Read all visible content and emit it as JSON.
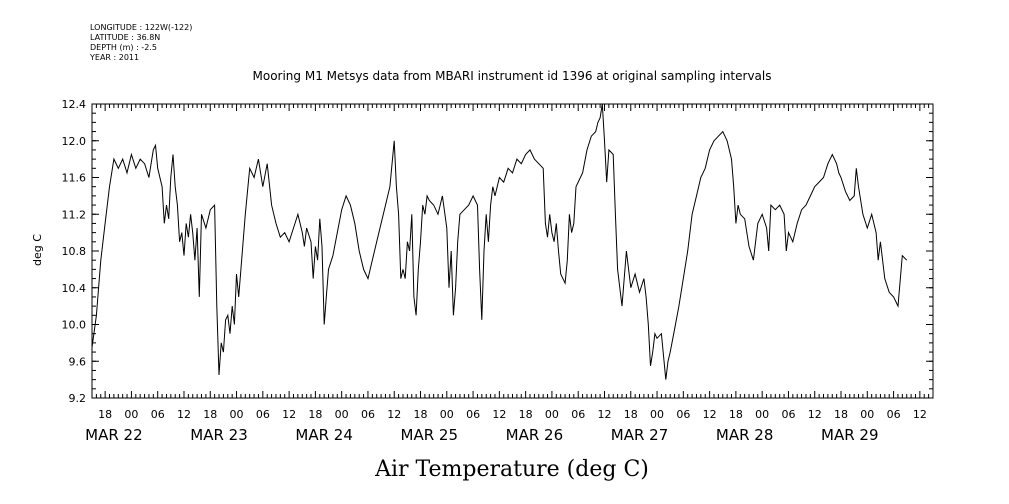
{
  "header": {
    "longitude": "LONGITUDE : 122W(-122)",
    "latitude": "LATITUDE : 36.8N",
    "depth": "DEPTH (m) : -2.5",
    "year": "YEAR : 2011"
  },
  "chart_data": {
    "type": "line",
    "title": "Mooring M1 Metsys data from MBARI instrument id 1396 at original sampling intervals",
    "xlabel": "Air Temperature (deg C)",
    "ylabel": "deg C",
    "ylim": [
      9.2,
      12.4
    ],
    "xlim_hours": [
      -9,
      183
    ],
    "y_ticks": [
      "9.2",
      "9.6",
      "10.0",
      "10.4",
      "10.8",
      "11.2",
      "11.6",
      "12.0",
      "12.4"
    ],
    "hour_labels": [
      "18",
      "00",
      "06",
      "12",
      "18",
      "00",
      "06",
      "12",
      "18",
      "00",
      "06",
      "12",
      "18",
      "00",
      "06",
      "12",
      "18",
      "00",
      "06",
      "12",
      "18",
      "00",
      "06",
      "12",
      "18",
      "00",
      "06",
      "12",
      "18",
      "00",
      "06",
      "12"
    ],
    "day_labels": [
      "MAR 22",
      "MAR 23",
      "MAR 24",
      "MAR 25",
      "MAR 26",
      "MAR 27",
      "MAR 28",
      "MAR 29"
    ],
    "grid": false,
    "series": [
      {
        "values": [
          [
            -9,
            9.75
          ],
          [
            -8,
            10.1
          ],
          [
            -7,
            10.7
          ],
          [
            -6,
            11.1
          ],
          [
            -5,
            11.5
          ],
          [
            -4,
            11.8
          ],
          [
            -3,
            11.7
          ],
          [
            -2,
            11.8
          ],
          [
            -1,
            11.65
          ],
          [
            0,
            11.85
          ],
          [
            1,
            11.7
          ],
          [
            2,
            11.8
          ],
          [
            3,
            11.75
          ],
          [
            4,
            11.6
          ],
          [
            5,
            11.9
          ],
          [
            5.5,
            11.95
          ],
          [
            6,
            11.7
          ],
          [
            7,
            11.5
          ],
          [
            7.5,
            11.1
          ],
          [
            8,
            11.3
          ],
          [
            8.5,
            11.15
          ],
          [
            9,
            11.6
          ],
          [
            9.5,
            11.85
          ],
          [
            10,
            11.5
          ],
          [
            10.5,
            11.3
          ],
          [
            11,
            10.9
          ],
          [
            11.5,
            11.0
          ],
          [
            12,
            10.75
          ],
          [
            12.5,
            11.1
          ],
          [
            13,
            10.95
          ],
          [
            13.5,
            11.2
          ],
          [
            14,
            11.0
          ],
          [
            14.5,
            10.7
          ],
          [
            15,
            11.05
          ],
          [
            15.5,
            10.3
          ],
          [
            16,
            11.2
          ],
          [
            17,
            11.05
          ],
          [
            18,
            11.25
          ],
          [
            19,
            11.3
          ],
          [
            19.5,
            10.2
          ],
          [
            20,
            9.45
          ],
          [
            20.5,
            9.8
          ],
          [
            21,
            9.7
          ],
          [
            21.5,
            10.05
          ],
          [
            22,
            10.1
          ],
          [
            22.5,
            9.9
          ],
          [
            23,
            10.2
          ],
          [
            23.5,
            10.0
          ],
          [
            24,
            10.55
          ],
          [
            24.5,
            10.3
          ],
          [
            25,
            10.6
          ],
          [
            26,
            11.2
          ],
          [
            27,
            11.7
          ],
          [
            28,
            11.6
          ],
          [
            29,
            11.8
          ],
          [
            30,
            11.5
          ],
          [
            31,
            11.75
          ],
          [
            32,
            11.3
          ],
          [
            33,
            11.1
          ],
          [
            34,
            10.95
          ],
          [
            35,
            11.0
          ],
          [
            36,
            10.9
          ],
          [
            37,
            11.05
          ],
          [
            38,
            11.2
          ],
          [
            39,
            11.0
          ],
          [
            39.5,
            10.85
          ],
          [
            40,
            11.05
          ],
          [
            41,
            10.9
          ],
          [
            41.5,
            10.5
          ],
          [
            42,
            10.85
          ],
          [
            42.5,
            10.7
          ],
          [
            43,
            11.15
          ],
          [
            43.5,
            10.85
          ],
          [
            44,
            10.0
          ],
          [
            44.5,
            10.3
          ],
          [
            45,
            10.6
          ],
          [
            46,
            10.75
          ],
          [
            47,
            11.0
          ],
          [
            48,
            11.25
          ],
          [
            49,
            11.4
          ],
          [
            50,
            11.3
          ],
          [
            51,
            11.1
          ],
          [
            52,
            10.8
          ],
          [
            53,
            10.6
          ],
          [
            54,
            10.5
          ],
          [
            55,
            10.7
          ],
          [
            56,
            10.9
          ],
          [
            57,
            11.1
          ],
          [
            58,
            11.3
          ],
          [
            59,
            11.5
          ],
          [
            60,
            12.0
          ],
          [
            60.5,
            11.5
          ],
          [
            61,
            11.2
          ],
          [
            61.5,
            10.5
          ],
          [
            62,
            10.6
          ],
          [
            62.5,
            10.5
          ],
          [
            63,
            10.9
          ],
          [
            63.5,
            10.8
          ],
          [
            64,
            11.2
          ],
          [
            64.5,
            10.3
          ],
          [
            65,
            10.1
          ],
          [
            65.5,
            10.6
          ],
          [
            66,
            10.9
          ],
          [
            66.5,
            11.3
          ],
          [
            67,
            11.2
          ],
          [
            67.5,
            11.4
          ],
          [
            68,
            11.35
          ],
          [
            69,
            11.3
          ],
          [
            70,
            11.2
          ],
          [
            71,
            11.4
          ],
          [
            72,
            11.05
          ],
          [
            72.5,
            10.4
          ],
          [
            73,
            10.8
          ],
          [
            73.5,
            10.1
          ],
          [
            74,
            10.4
          ],
          [
            74.5,
            10.9
          ],
          [
            75,
            11.2
          ],
          [
            76,
            11.25
          ],
          [
            77,
            11.3
          ],
          [
            78,
            11.4
          ],
          [
            79,
            11.3
          ],
          [
            79.5,
            10.6
          ],
          [
            80,
            10.05
          ],
          [
            80.5,
            10.8
          ],
          [
            81,
            11.2
          ],
          [
            81.5,
            10.9
          ],
          [
            82,
            11.3
          ],
          [
            82.5,
            11.5
          ],
          [
            83,
            11.4
          ],
          [
            84,
            11.6
          ],
          [
            85,
            11.55
          ],
          [
            86,
            11.7
          ],
          [
            87,
            11.65
          ],
          [
            88,
            11.8
          ],
          [
            89,
            11.75
          ],
          [
            90,
            11.85
          ],
          [
            91,
            11.9
          ],
          [
            92,
            11.8
          ],
          [
            93,
            11.75
          ],
          [
            94,
            11.7
          ],
          [
            94.5,
            11.1
          ],
          [
            95,
            10.95
          ],
          [
            95.5,
            11.2
          ],
          [
            96,
            11.0
          ],
          [
            96.5,
            10.9
          ],
          [
            97,
            11.1
          ],
          [
            97.5,
            10.8
          ],
          [
            98,
            10.55
          ],
          [
            99,
            10.45
          ],
          [
            99.5,
            10.7
          ],
          [
            100,
            11.2
          ],
          [
            100.5,
            11.0
          ],
          [
            101,
            11.1
          ],
          [
            101.5,
            11.5
          ],
          [
            102,
            11.55
          ],
          [
            103,
            11.65
          ],
          [
            104,
            11.9
          ],
          [
            105,
            12.05
          ],
          [
            106,
            12.1
          ],
          [
            106.5,
            12.2
          ],
          [
            107,
            12.25
          ],
          [
            107.5,
            12.4
          ],
          [
            108,
            12.0
          ],
          [
            108.5,
            11.55
          ],
          [
            109,
            11.9
          ],
          [
            110,
            11.85
          ],
          [
            110.5,
            11.2
          ],
          [
            111,
            10.6
          ],
          [
            112,
            10.2
          ],
          [
            112.5,
            10.5
          ],
          [
            113,
            10.8
          ],
          [
            114,
            10.4
          ],
          [
            115,
            10.55
          ],
          [
            116,
            10.35
          ],
          [
            117,
            10.5
          ],
          [
            117.5,
            10.3
          ],
          [
            118,
            10.0
          ],
          [
            118.5,
            9.55
          ],
          [
            119,
            9.7
          ],
          [
            119.5,
            9.9
          ],
          [
            120,
            9.85
          ],
          [
            121,
            9.9
          ],
          [
            122,
            9.4
          ],
          [
            122.5,
            9.6
          ],
          [
            123,
            9.7
          ],
          [
            124,
            9.95
          ],
          [
            125,
            10.2
          ],
          [
            126,
            10.5
          ],
          [
            127,
            10.8
          ],
          [
            128,
            11.2
          ],
          [
            129,
            11.4
          ],
          [
            130,
            11.6
          ],
          [
            131,
            11.7
          ],
          [
            132,
            11.9
          ],
          [
            133,
            12.0
          ],
          [
            134,
            12.05
          ],
          [
            135,
            12.1
          ],
          [
            136,
            12.0
          ],
          [
            137,
            11.8
          ],
          [
            137.5,
            11.5
          ],
          [
            138,
            11.1
          ],
          [
            138.5,
            11.3
          ],
          [
            139,
            11.2
          ],
          [
            140,
            11.15
          ],
          [
            141,
            10.85
          ],
          [
            142,
            10.7
          ],
          [
            143,
            11.1
          ],
          [
            144,
            11.2
          ],
          [
            145,
            11.05
          ],
          [
            145.5,
            10.8
          ],
          [
            146,
            11.3
          ],
          [
            147,
            11.25
          ],
          [
            148,
            11.3
          ],
          [
            149,
            11.2
          ],
          [
            149.5,
            10.8
          ],
          [
            150,
            11.0
          ],
          [
            151,
            10.9
          ],
          [
            152,
            11.1
          ],
          [
            153,
            11.25
          ],
          [
            154,
            11.3
          ],
          [
            155,
            11.4
          ],
          [
            156,
            11.5
          ],
          [
            157,
            11.55
          ],
          [
            158,
            11.6
          ],
          [
            159,
            11.75
          ],
          [
            160,
            11.85
          ],
          [
            161,
            11.75
          ],
          [
            161.5,
            11.65
          ],
          [
            162,
            11.6
          ],
          [
            163,
            11.45
          ],
          [
            164,
            11.35
          ],
          [
            165,
            11.4
          ],
          [
            165.5,
            11.7
          ],
          [
            166,
            11.5
          ],
          [
            167,
            11.2
          ],
          [
            168,
            11.05
          ],
          [
            169,
            11.2
          ],
          [
            170,
            11.0
          ],
          [
            170.5,
            10.7
          ],
          [
            171,
            10.9
          ],
          [
            172,
            10.5
          ],
          [
            173,
            10.35
          ],
          [
            174,
            10.3
          ],
          [
            175,
            10.2
          ],
          [
            176,
            10.75
          ],
          [
            177,
            10.7
          ]
        ]
      }
    ]
  }
}
